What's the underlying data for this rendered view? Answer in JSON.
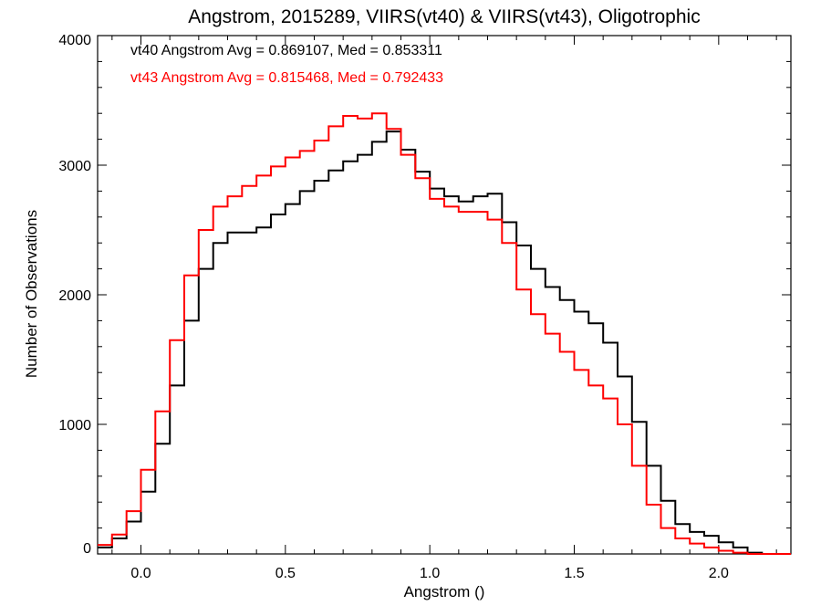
{
  "chart_data": {
    "type": "line",
    "title": "Angstrom, 2015289, VIIRS(vt40) & VIIRS(vt43), Oligotrophic",
    "xlabel": "Angstrom ()",
    "ylabel": "Number of Observations",
    "xlim": [
      -0.15,
      2.25
    ],
    "ylim": [
      0,
      4000
    ],
    "xticks": [
      0.0,
      0.5,
      1.0,
      1.5,
      2.0
    ],
    "xtick_labels": [
      "0.0",
      "0.5",
      "1.0",
      "1.5",
      "2.0"
    ],
    "yticks": [
      0,
      1000,
      2000,
      3000,
      4000
    ],
    "ytick_labels": [
      "0",
      "1000",
      "2000",
      "3000",
      "4000"
    ],
    "grid": false,
    "step": true,
    "annotations": [
      {
        "text": "vt40 Angstrom Avg = 0.869107, Med = 0.853311",
        "color": "#000000"
      },
      {
        "text": "vt43 Angstrom Avg = 0.815468, Med = 0.792433",
        "color": "#ff0000"
      }
    ],
    "series": [
      {
        "color": "#000000",
        "x": [
          -0.15,
          -0.1,
          -0.05,
          0.0,
          0.05,
          0.1,
          0.15,
          0.2,
          0.25,
          0.3,
          0.35,
          0.4,
          0.45,
          0.5,
          0.55,
          0.6,
          0.65,
          0.7,
          0.75,
          0.8,
          0.85,
          0.9,
          0.95,
          1.0,
          1.05,
          1.1,
          1.15,
          1.2,
          1.25,
          1.3,
          1.35,
          1.4,
          1.45,
          1.5,
          1.55,
          1.6,
          1.65,
          1.7,
          1.75,
          1.8,
          1.85,
          1.9,
          1.95,
          2.0,
          2.05,
          2.1,
          2.15,
          2.2,
          2.25
        ],
        "y": [
          50,
          120,
          250,
          480,
          850,
          1300,
          1800,
          2200,
          2400,
          2480,
          2480,
          2520,
          2620,
          2700,
          2800,
          2880,
          2960,
          3030,
          3080,
          3180,
          3260,
          3120,
          2950,
          2820,
          2760,
          2720,
          2760,
          2780,
          2560,
          2380,
          2200,
          2060,
          1960,
          1870,
          1780,
          1630,
          1370,
          1020,
          680,
          410,
          230,
          170,
          140,
          90,
          50,
          10,
          0,
          0,
          0
        ]
      },
      {
        "color": "#ff0000",
        "x": [
          -0.15,
          -0.1,
          -0.05,
          0.0,
          0.05,
          0.1,
          0.15,
          0.2,
          0.25,
          0.3,
          0.35,
          0.4,
          0.45,
          0.5,
          0.55,
          0.6,
          0.65,
          0.7,
          0.75,
          0.8,
          0.85,
          0.9,
          0.95,
          1.0,
          1.05,
          1.1,
          1.15,
          1.2,
          1.25,
          1.3,
          1.35,
          1.4,
          1.45,
          1.5,
          1.55,
          1.6,
          1.65,
          1.7,
          1.75,
          1.8,
          1.85,
          1.9,
          1.95,
          2.0,
          2.05,
          2.1,
          2.15,
          2.2,
          2.25
        ],
        "y": [
          70,
          150,
          330,
          650,
          1100,
          1650,
          2150,
          2500,
          2680,
          2760,
          2840,
          2920,
          2990,
          3060,
          3110,
          3190,
          3300,
          3380,
          3360,
          3400,
          3280,
          3080,
          2900,
          2740,
          2680,
          2640,
          2640,
          2580,
          2400,
          2040,
          1850,
          1700,
          1560,
          1420,
          1300,
          1200,
          1000,
          680,
          380,
          200,
          120,
          80,
          50,
          25,
          10,
          0,
          0,
          0,
          0
        ]
      }
    ]
  }
}
